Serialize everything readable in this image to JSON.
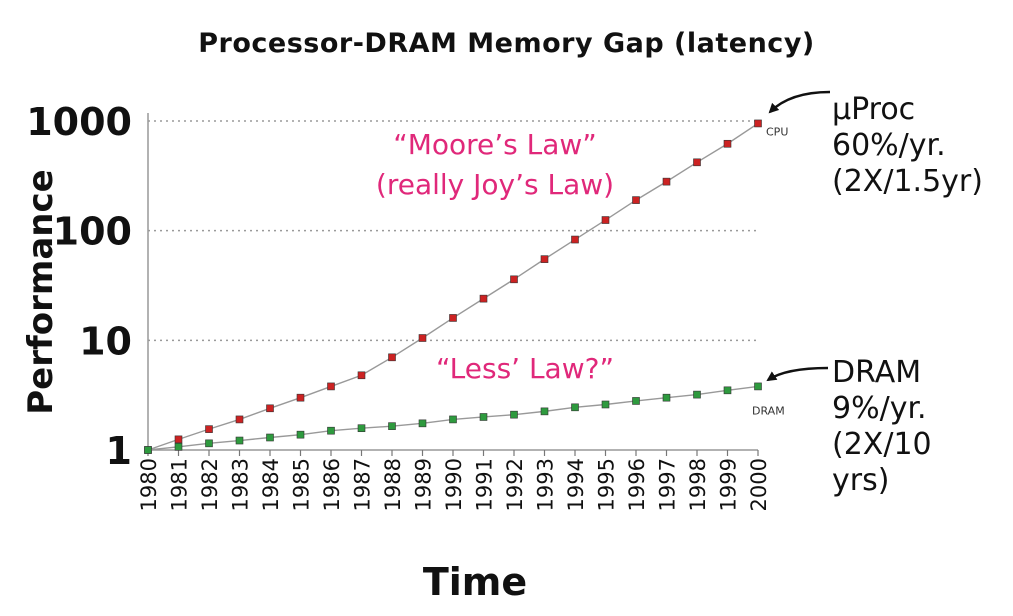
{
  "title": "Processor-DRAM Memory Gap (latency)",
  "chart_data": {
    "type": "line",
    "title": "Processor-DRAM Memory Gap (latency)",
    "xlabel": "Time",
    "ylabel": "Performance",
    "yscale": "log",
    "ylim": [
      1,
      1000
    ],
    "yticks": [
      "1",
      "10",
      "100",
      "1000"
    ],
    "grid": "horizontal dotted",
    "categories": [
      "1980",
      "1981",
      "1982",
      "1983",
      "1984",
      "1985",
      "1986",
      "1987",
      "1988",
      "1989",
      "1990",
      "1991",
      "1992",
      "1993",
      "1994",
      "1995",
      "1996",
      "1997",
      "1998",
      "1999",
      "2000"
    ],
    "series": [
      {
        "name": "CPU",
        "color": "#cc2222",
        "x": [
          1980,
          1981,
          1982,
          1983,
          1984,
          1985,
          1986,
          1987,
          1988,
          1989,
          1990,
          1991,
          1992,
          1993,
          1994,
          1995,
          1996,
          1997,
          1998,
          1999,
          2000
        ],
        "values": [
          1,
          1.25,
          1.55,
          1.9,
          2.4,
          3.0,
          3.8,
          4.8,
          7,
          10.5,
          16,
          24,
          36,
          55,
          83,
          125,
          190,
          280,
          420,
          620,
          950
        ]
      },
      {
        "name": "DRAM",
        "color": "#2e9a3e",
        "x": [
          1980,
          1981,
          1982,
          1983,
          1984,
          1985,
          1986,
          1987,
          1988,
          1989,
          1990,
          1991,
          1992,
          1993,
          1994,
          1995,
          1996,
          1997,
          1998,
          1999,
          2000
        ],
        "values": [
          1,
          1.07,
          1.15,
          1.22,
          1.3,
          1.38,
          1.5,
          1.58,
          1.65,
          1.75,
          1.9,
          2.0,
          2.1,
          2.25,
          2.45,
          2.6,
          2.8,
          3.0,
          3.2,
          3.5,
          3.8
        ]
      }
    ]
  },
  "annotations": {
    "moore_line1": "“Moore’s Law”",
    "moore_line2": "(really Joy’s Law)",
    "less": "“Less’ Law?”",
    "cpu_label": "CPU",
    "dram_label": "DRAM",
    "cpu_note": [
      "µProc",
      "60%/yr.",
      "(2X/1.5yr)"
    ],
    "dram_note": [
      "DRAM",
      "9%/yr.",
      "(2X/10",
      "yrs)"
    ]
  },
  "colors": {
    "annotation": "#e0287a",
    "cpu": "#cc2222",
    "dram": "#2e9a3e",
    "line": "#999999"
  }
}
